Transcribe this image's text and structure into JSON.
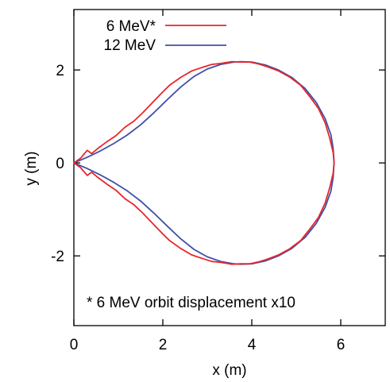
{
  "chart_data": {
    "type": "line",
    "title": "",
    "xlabel": "x (m)",
    "ylabel": "y (m)",
    "xlim": [
      0,
      7
    ],
    "ylim": [
      -3.5,
      3.3
    ],
    "xticks": [
      0,
      2,
      4,
      6
    ],
    "yticks": [
      -2,
      0,
      2
    ],
    "xtick_labels": [
      "0",
      "2",
      "4",
      "6"
    ],
    "ytick_labels": [
      "-2",
      "0",
      "2"
    ],
    "grid": false,
    "legend_position": "top-left",
    "annotation": "* 6 MeV orbit displacement x10",
    "series": [
      {
        "name": "6 MeV*",
        "color": "#e8262b",
        "x": [
          0.0,
          0.15,
          0.3,
          0.4,
          0.55,
          0.75,
          0.95,
          1.15,
          1.35,
          1.55,
          1.75,
          1.95,
          2.15,
          2.4,
          2.65,
          2.9,
          3.1,
          3.3,
          3.55,
          3.75,
          3.95,
          4.15,
          4.35,
          4.6,
          4.85,
          5.1,
          5.3,
          5.5,
          5.65,
          5.75,
          5.83,
          5.85
        ],
        "y": [
          0.0,
          0.1,
          0.27,
          0.2,
          0.32,
          0.46,
          0.59,
          0.77,
          0.9,
          1.08,
          1.28,
          1.48,
          1.67,
          1.84,
          1.98,
          2.06,
          2.12,
          2.14,
          2.18,
          2.17,
          2.17,
          2.13,
          2.07,
          1.98,
          1.85,
          1.67,
          1.43,
          1.17,
          0.86,
          0.54,
          0.22,
          0.0
        ]
      },
      {
        "name": "12 MeV",
        "color": "#3f4fa8",
        "x": [
          0.0,
          0.3,
          0.6,
          0.9,
          1.2,
          1.5,
          1.8,
          2.1,
          2.4,
          2.7,
          3.0,
          3.3,
          3.6,
          3.75,
          4.0,
          4.3,
          4.6,
          4.9,
          5.2,
          5.45,
          5.65,
          5.78,
          5.83,
          5.85
        ],
        "y": [
          0.0,
          0.12,
          0.26,
          0.42,
          0.6,
          0.82,
          1.08,
          1.36,
          1.63,
          1.86,
          2.02,
          2.12,
          2.17,
          2.18,
          2.17,
          2.11,
          2.0,
          1.84,
          1.6,
          1.3,
          0.95,
          0.6,
          0.3,
          0.0
        ]
      }
    ]
  }
}
